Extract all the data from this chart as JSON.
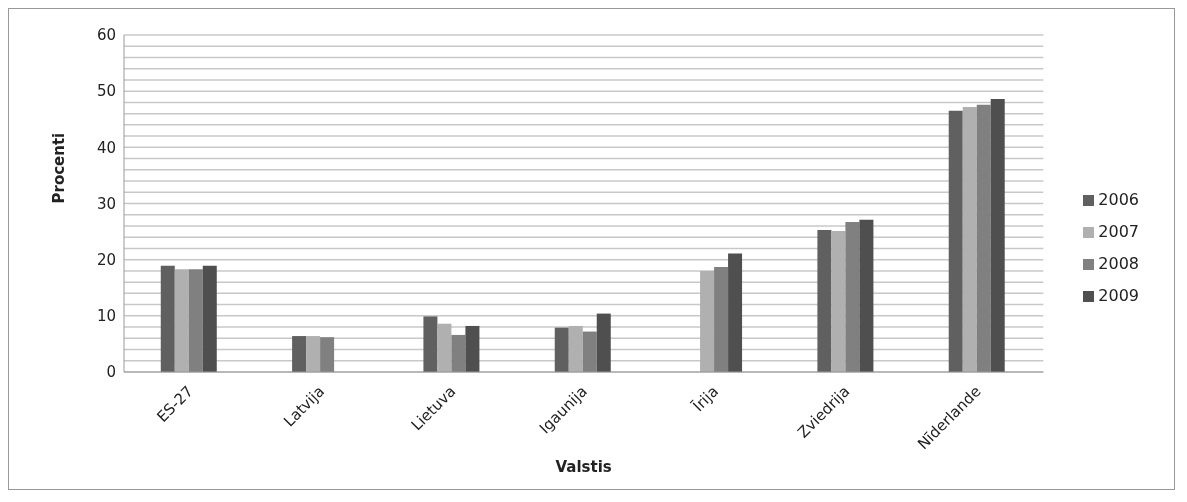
{
  "chart_data": {
    "type": "bar",
    "xlabel": "Valstis",
    "ylabel": "Procenti",
    "categories": [
      "ES-27",
      "Latvija",
      "Lietuva",
      "Igaunija",
      "Īrija",
      "Zviedrija",
      "Nīderlande"
    ],
    "series": [
      {
        "name": "2006",
        "color": "#606060",
        "values": [
          18.9,
          6.4,
          9.9,
          7.9,
          null,
          25.3,
          46.5
        ]
      },
      {
        "name": "2007",
        "color": "#b0b0b0",
        "values": [
          18.3,
          6.4,
          8.6,
          8.2,
          18.0,
          25.1,
          47.2
        ]
      },
      {
        "name": "2008",
        "color": "#808080",
        "values": [
          18.3,
          6.2,
          6.6,
          7.2,
          18.7,
          26.7,
          47.6
        ]
      },
      {
        "name": "2009",
        "color": "#4f4f4f",
        "values": [
          18.9,
          null,
          8.2,
          10.4,
          21.1,
          27.1,
          48.6
        ]
      }
    ],
    "ylim": [
      0,
      60
    ],
    "yticks": [
      0,
      {
        "value": 2,
        "label": null
      },
      {
        "value": 4,
        "label": null
      },
      {
        "value": 6,
        "label": null
      },
      {
        "value": 8,
        "label": null
      },
      10,
      {
        "value": 12,
        "label": null
      },
      {
        "value": 14,
        "label": null
      },
      {
        "value": 16,
        "label": null
      },
      {
        "value": 18,
        "label": null
      },
      20,
      {
        "value": 22,
        "label": null
      },
      {
        "value": 24,
        "label": null
      },
      {
        "value": 26,
        "label": null
      },
      {
        "value": 28,
        "label": null
      },
      30,
      {
        "value": 32,
        "label": null
      },
      {
        "value": 34,
        "label": null
      },
      {
        "value": 36,
        "label": null
      },
      {
        "value": 38,
        "label": null
      },
      40,
      {
        "value": 42,
        "label": null
      },
      {
        "value": 44,
        "label": null
      },
      {
        "value": 46,
        "label": null
      },
      {
        "value": 48,
        "label": null
      },
      50,
      {
        "value": 52,
        "label": null
      },
      {
        "value": 54,
        "label": null
      },
      {
        "value": 56,
        "label": null
      },
      {
        "value": 58,
        "label": null
      },
      60
    ],
    "grid": "y",
    "legend": "right"
  }
}
